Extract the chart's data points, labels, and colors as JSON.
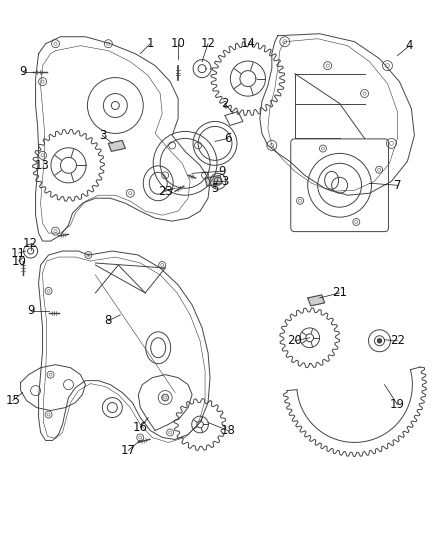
{
  "bg_color": "#ffffff",
  "line_color": "#444444",
  "label_color": "#111111",
  "fig_width": 4.38,
  "fig_height": 5.33,
  "dpi": 100
}
